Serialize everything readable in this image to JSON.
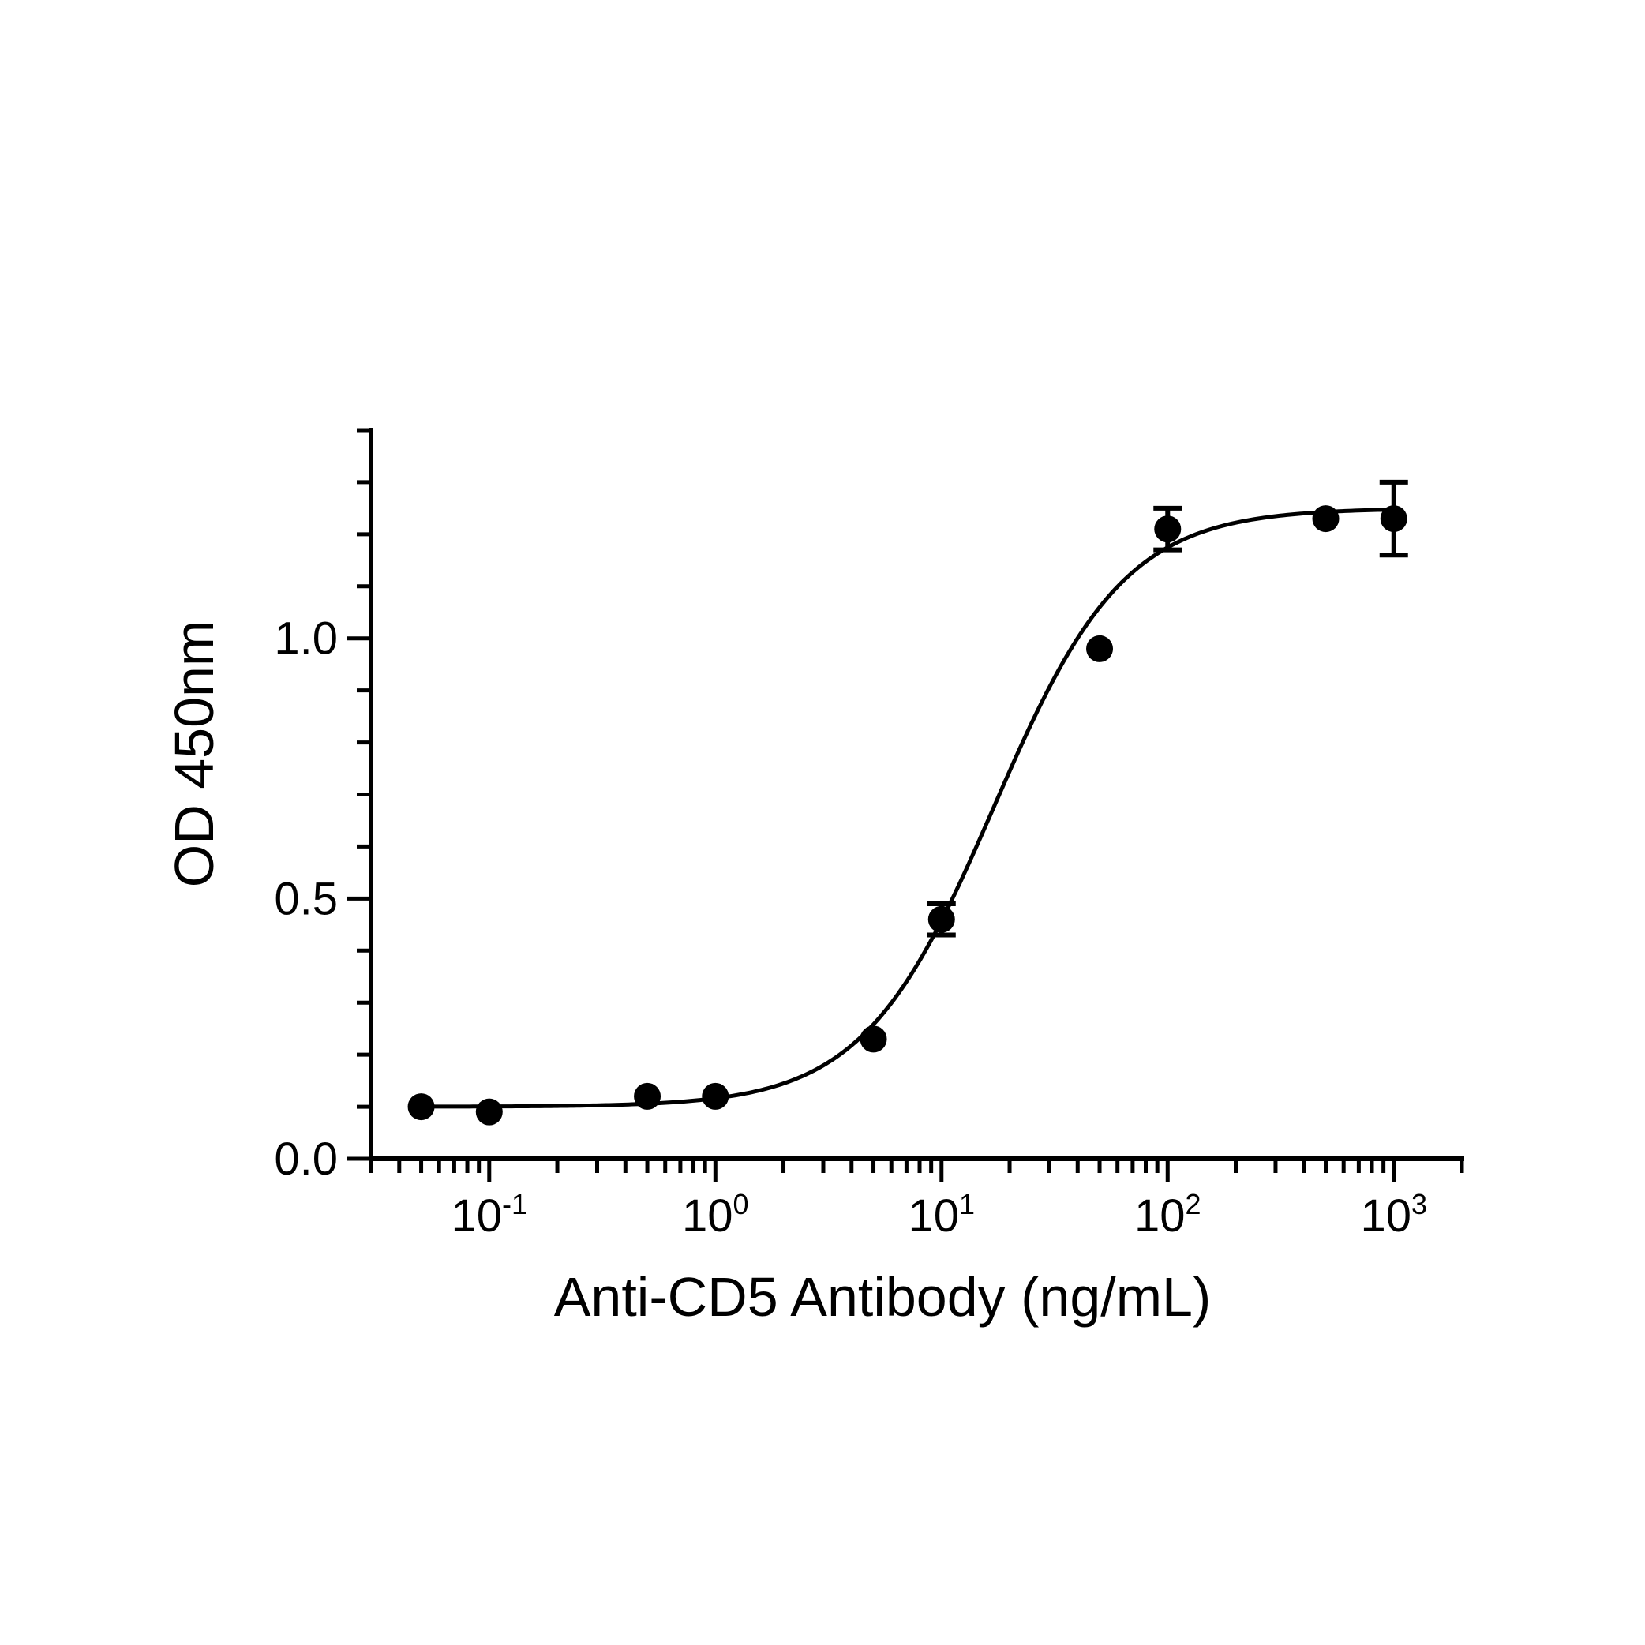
{
  "chart_data": {
    "type": "scatter",
    "xlabel": "Anti-CD5 Antibody (ng/mL)",
    "ylabel": "OD 450nm",
    "x_scale": "log10",
    "xlim": [
      0.03,
      2000
    ],
    "ylim": [
      0,
      1.4
    ],
    "y_ticks": [
      {
        "value": 0.0,
        "label": "0.0"
      },
      {
        "value": 0.5,
        "label": "0.5"
      },
      {
        "value": 1.0,
        "label": "1.0"
      }
    ],
    "x_ticks": [
      {
        "value": 0.1,
        "base": "10",
        "exp": "-1"
      },
      {
        "value": 1,
        "base": "10",
        "exp": "0"
      },
      {
        "value": 10,
        "base": "10",
        "exp": "1"
      },
      {
        "value": 100,
        "base": "10",
        "exp": "2"
      },
      {
        "value": 1000,
        "base": "10",
        "exp": "3"
      }
    ],
    "grid": false,
    "legend": "none",
    "series": [
      {
        "marker": "filled-circle",
        "color": "#000000",
        "points": [
          {
            "x": 0.05,
            "y": 0.1,
            "err": 0.0
          },
          {
            "x": 0.1,
            "y": 0.09,
            "err": 0.0
          },
          {
            "x": 0.5,
            "y": 0.12,
            "err": 0.0
          },
          {
            "x": 1,
            "y": 0.12,
            "err": 0.0
          },
          {
            "x": 5,
            "y": 0.23,
            "err": 0.0
          },
          {
            "x": 10,
            "y": 0.46,
            "err": 0.03
          },
          {
            "x": 50,
            "y": 0.98,
            "err": 0.0
          },
          {
            "x": 100,
            "y": 1.21,
            "err": 0.04
          },
          {
            "x": 500,
            "y": 1.23,
            "err": 0.0
          },
          {
            "x": 1000,
            "y": 1.23,
            "err": 0.07
          }
        ]
      }
    ],
    "fit": {
      "model": "4PL",
      "bottom": 0.1,
      "top": 1.25,
      "ec50": 17,
      "hill": 1.5,
      "color": "#000000"
    }
  }
}
